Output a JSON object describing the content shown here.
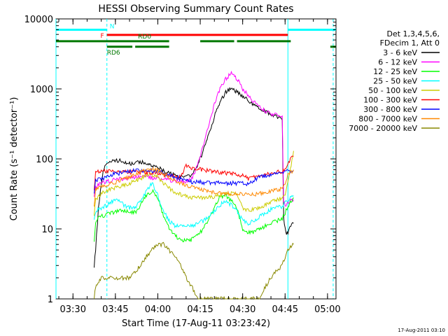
{
  "chart_data": {
    "type": "line",
    "title": "HESSI Observing Summary Count Rates",
    "xlabel": "Start Time (17-Aug-11 03:23:42)",
    "ylabel": "Count Rate (s⁻¹ detector⁻¹)",
    "yscale": "log",
    "ylim": [
      1,
      10000
    ],
    "xlim_minutes": [
      204,
      303
    ],
    "x_ticks": [
      {
        "t": 210,
        "label": "03:30"
      },
      {
        "t": 225,
        "label": "03:45"
      },
      {
        "t": 240,
        "label": "04:00"
      },
      {
        "t": 255,
        "label": "04:15"
      },
      {
        "t": 270,
        "label": "04:30"
      },
      {
        "t": 285,
        "label": "04:45"
      },
      {
        "t": 300,
        "label": "05:00"
      }
    ],
    "y_ticks": [
      {
        "v": 1,
        "label": "1"
      },
      {
        "v": 10,
        "label": "10"
      },
      {
        "v": 100,
        "label": "100"
      },
      {
        "v": 1000,
        "label": "1000"
      },
      {
        "v": 10000,
        "label": "10000"
      }
    ],
    "legend": {
      "placement": "right",
      "header": [
        "Det 1,3,4,5,6,",
        "FDecim 1, Att 0"
      ]
    },
    "series": [
      {
        "name": "3 - 6 keV",
        "color": "#000000",
        "x": [
          217.5,
          218,
          219,
          220,
          221,
          222,
          223,
          224,
          226,
          228,
          230,
          232,
          234,
          236,
          238,
          240,
          242,
          244,
          246,
          248,
          250,
          252,
          254,
          256,
          258,
          260,
          262,
          264,
          266,
          268,
          270,
          272,
          274,
          276,
          278,
          280,
          282,
          283,
          284,
          284.5,
          285,
          285.5,
          286,
          287,
          288
        ],
        "y": [
          3,
          5,
          20,
          45,
          75,
          85,
          90,
          92,
          95,
          90,
          85,
          88,
          90,
          85,
          80,
          75,
          68,
          62,
          58,
          55,
          55,
          60,
          80,
          130,
          230,
          400,
          650,
          900,
          1000,
          900,
          780,
          680,
          600,
          530,
          480,
          440,
          400,
          390,
          380,
          15,
          10,
          8,
          9,
          11,
          12
        ]
      },
      {
        "name": "6 - 12 keV",
        "color": "#ff00ff",
        "x": [
          217.5,
          218,
          220,
          224,
          228,
          232,
          236,
          240,
          244,
          248,
          250,
          252,
          254,
          256,
          258,
          260,
          262,
          264,
          266,
          268,
          270,
          272,
          274,
          276,
          278,
          280,
          282,
          284,
          284.5,
          285,
          286,
          288
        ],
        "y": [
          30,
          40,
          45,
          50,
          52,
          55,
          55,
          52,
          50,
          48,
          48,
          52,
          80,
          150,
          300,
          600,
          1000,
          1400,
          1650,
          1400,
          1000,
          800,
          650,
          550,
          480,
          440,
          420,
          400,
          25,
          22,
          24,
          26
        ]
      },
      {
        "name": "12 - 25 keV",
        "color": "#00ff00",
        "x": [
          217.5,
          218,
          220,
          222,
          224,
          226,
          228,
          230,
          232,
          234,
          236,
          238,
          240,
          242,
          244,
          246,
          248,
          250,
          252,
          254,
          256,
          258,
          260,
          262,
          264,
          266,
          268,
          270,
          272,
          274,
          276,
          278,
          280,
          282,
          284,
          285,
          286,
          288
        ],
        "y": [
          7,
          13,
          15,
          16,
          17,
          18,
          18,
          18,
          17,
          22,
          30,
          35,
          28,
          15,
          10,
          8,
          7,
          7,
          7,
          8,
          10,
          14,
          20,
          28,
          30,
          25,
          20,
          10,
          9,
          9,
          10,
          11,
          12,
          13,
          14,
          17,
          21,
          28
        ]
      },
      {
        "name": "25 - 50 keV",
        "color": "#00ffff",
        "x": [
          217.5,
          218,
          220,
          222,
          224,
          226,
          228,
          230,
          232,
          234,
          236,
          238,
          240,
          242,
          244,
          246,
          248,
          250,
          252,
          254,
          256,
          258,
          260,
          262,
          264,
          266,
          268,
          270,
          272,
          274,
          276,
          278,
          280,
          282,
          284,
          285,
          286,
          288
        ],
        "y": [
          14,
          18,
          20,
          22,
          25,
          26,
          22,
          20,
          20,
          25,
          35,
          45,
          30,
          18,
          13,
          11,
          11,
          11,
          11,
          12,
          13,
          15,
          18,
          22,
          25,
          22,
          18,
          13,
          12,
          13,
          15,
          17,
          19,
          20,
          21,
          23,
          26,
          30
        ]
      },
      {
        "name": "50 - 100 keV",
        "color": "#cccc00",
        "x": [
          217.5,
          218,
          220,
          222,
          224,
          226,
          228,
          230,
          232,
          234,
          236,
          238,
          240,
          242,
          244,
          246,
          248,
          250,
          252,
          254,
          256,
          258,
          260,
          262,
          264,
          266,
          268,
          270,
          272,
          274,
          276,
          278,
          280,
          282,
          284,
          285,
          286,
          288
        ],
        "y": [
          16,
          26,
          32,
          35,
          38,
          40,
          42,
          45,
          48,
          52,
          58,
          60,
          55,
          45,
          38,
          34,
          31,
          29,
          28,
          28,
          28,
          28,
          29,
          30,
          32,
          32,
          31,
          20,
          18,
          19,
          20,
          22,
          24,
          26,
          28,
          32,
          45,
          130
        ]
      },
      {
        "name": "100 - 300 keV",
        "color": "#ff0000",
        "x": [
          217.5,
          218,
          220,
          222,
          224,
          226,
          228,
          230,
          232,
          234,
          236,
          238,
          240,
          242,
          244,
          246,
          248,
          250,
          252,
          254,
          256,
          258,
          260,
          262,
          264,
          266,
          268,
          270,
          272,
          274,
          276,
          278,
          280,
          282,
          284,
          285,
          286,
          288
        ],
        "y": [
          38,
          65,
          66,
          66,
          66,
          65,
          65,
          65,
          64,
          64,
          64,
          63,
          62,
          60,
          58,
          56,
          54,
          80,
          75,
          72,
          70,
          68,
          66,
          64,
          63,
          62,
          60,
          58,
          52,
          55,
          58,
          60,
          62,
          64,
          66,
          70,
          90,
          110
        ]
      },
      {
        "name": "300 - 800 keV",
        "color": "#0000ff",
        "x": [
          217.5,
          218,
          220,
          222,
          224,
          226,
          228,
          230,
          232,
          234,
          236,
          238,
          240,
          242,
          244,
          246,
          248,
          250,
          252,
          254,
          256,
          258,
          260,
          262,
          264,
          266,
          268,
          270,
          272,
          274,
          276,
          278,
          280,
          282,
          284,
          285,
          286,
          288
        ],
        "y": [
          30,
          50,
          52,
          55,
          60,
          62,
          65,
          66,
          68,
          68,
          68,
          67,
          66,
          62,
          58,
          55,
          52,
          48,
          47,
          47,
          46,
          46,
          46,
          46,
          45,
          45,
          45,
          45,
          44,
          50,
          55,
          58,
          60,
          62,
          65,
          66,
          67,
          68
        ]
      },
      {
        "name": "800 - 7000 keV",
        "color": "#ff8800",
        "x": [
          217.5,
          218,
          220,
          222,
          224,
          226,
          228,
          230,
          232,
          234,
          236,
          238,
          240,
          242,
          244,
          246,
          248,
          250,
          252,
          254,
          256,
          258,
          260,
          262,
          264,
          266,
          268,
          270,
          272,
          274,
          276,
          278,
          280,
          282,
          284,
          285,
          286,
          288
        ],
        "y": [
          22,
          38,
          40,
          42,
          45,
          48,
          52,
          56,
          60,
          65,
          68,
          70,
          68,
          62,
          55,
          50,
          45,
          42,
          40,
          38,
          36,
          34,
          33,
          32,
          32,
          32,
          32,
          32,
          31,
          31,
          32,
          33,
          35,
          36,
          38,
          45,
          60,
          70
        ]
      },
      {
        "name": "7000 - 20000 keV",
        "color": "#888800",
        "x": [
          217.5,
          218,
          220,
          222,
          224,
          226,
          228,
          230,
          232,
          234,
          236,
          238,
          240,
          242,
          244,
          246,
          248,
          250,
          252,
          254,
          256,
          258,
          260,
          262,
          264,
          266,
          268,
          270,
          272,
          274,
          276,
          278,
          280,
          282,
          284,
          285,
          286,
          288
        ],
        "y": [
          1,
          1.5,
          2,
          2,
          2,
          2,
          2,
          2,
          2.5,
          3,
          4,
          5,
          6,
          6,
          5,
          4,
          3,
          2,
          1.5,
          1,
          1,
          1,
          1,
          1,
          1,
          1,
          1,
          1,
          1,
          1,
          1,
          1.5,
          2,
          2.5,
          3,
          4,
          5,
          6
        ]
      }
    ],
    "annotations": [
      {
        "name": "Night",
        "label": "N",
        "color": "#00ffff",
        "segments": [
          [
            204,
            222
          ],
          [
            286,
            303
          ]
        ],
        "value": 7000
      },
      {
        "name": "Flare",
        "label": "F",
        "color": "#ff0000",
        "segments": [
          [
            222,
            286
          ]
        ],
        "value": 5900
      },
      {
        "name": "RD0",
        "label": "RD0",
        "color": "#007700",
        "segments": [
          [
            204,
            244
          ],
          [
            255,
            267
          ],
          [
            268,
            287
          ]
        ],
        "value": 4800
      },
      {
        "name": "RD6",
        "label": "RD6",
        "color": "#007700",
        "segments": [
          [
            222,
            231
          ],
          [
            232,
            244
          ],
          [
            301,
            303
          ]
        ],
        "value": 4000
      }
    ],
    "vertical_lines": [
      {
        "t": 204,
        "style": "solid"
      },
      {
        "t": 222,
        "style": "dashed"
      },
      {
        "t": 286,
        "style": "solid"
      },
      {
        "t": 302,
        "style": "dashed"
      }
    ]
  },
  "footer_date": "17-Aug-2011 03:10"
}
